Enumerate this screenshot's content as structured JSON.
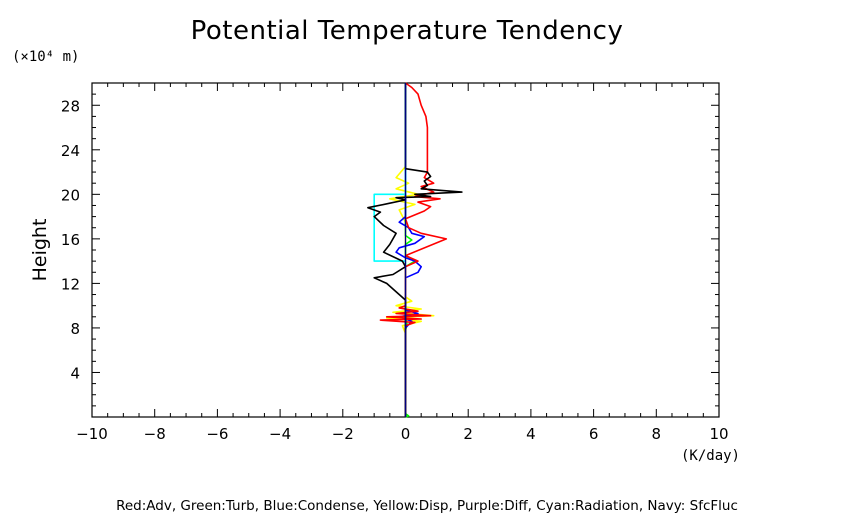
{
  "chart_data": {
    "type": "line",
    "title": "Potential Temperature Tendency",
    "xlabel": "(K/day)",
    "ylabel": "Height",
    "y_unit_label": "(×10⁴ m)",
    "xlim": [
      -10,
      10
    ],
    "ylim": [
      0,
      30
    ],
    "x_ticks": [
      -10,
      -8,
      -6,
      -4,
      -2,
      0,
      2,
      4,
      6,
      8,
      10
    ],
    "x_tick_labels": [
      "−10",
      "−8",
      "−6",
      "−4",
      "−2",
      "0",
      "2",
      "4",
      "6",
      "8",
      "10"
    ],
    "y_ticks": [
      4,
      8,
      12,
      16,
      20,
      24,
      28
    ],
    "y_tick_labels": [
      "4",
      "8",
      "12",
      "16",
      "20",
      "24",
      "28"
    ],
    "grid": false,
    "legend_caption": "Red:Adv, Green:Turb, Blue:Condense, Yellow:Disp, Purple:Diff, Cyan:Radiation, Navy: SfcFluc",
    "series": [
      {
        "color": "#ffff00",
        "points": [
          [
            0,
            0
          ],
          [
            0,
            7.5
          ],
          [
            -0.1,
            8.2
          ],
          [
            0.5,
            8.6
          ],
          [
            -0.6,
            8.9
          ],
          [
            0.9,
            9.1
          ],
          [
            -0.4,
            9.4
          ],
          [
            0.5,
            9.7
          ],
          [
            -0.3,
            10
          ],
          [
            0.2,
            10.4
          ],
          [
            0,
            10.8
          ],
          [
            0,
            15
          ],
          [
            0,
            17.5
          ],
          [
            -0.2,
            18.6
          ],
          [
            0.3,
            19.1
          ],
          [
            -0.5,
            19.6
          ],
          [
            0.4,
            20
          ],
          [
            -0.3,
            20.5
          ],
          [
            0.1,
            21
          ],
          [
            -0.3,
            21.5
          ],
          [
            0,
            22.5
          ],
          [
            0,
            30
          ]
        ]
      },
      {
        "color": "#00ff00",
        "points": [
          [
            0,
            0
          ],
          [
            0.1,
            0.1
          ],
          [
            0,
            0.3
          ],
          [
            0,
            7.8
          ],
          [
            0.05,
            8.3
          ],
          [
            0,
            9
          ],
          [
            0,
            13.5
          ],
          [
            0.3,
            14
          ],
          [
            0,
            14.5
          ],
          [
            0,
            15.5
          ],
          [
            0.2,
            15.9
          ],
          [
            0,
            16.3
          ],
          [
            0,
            30
          ]
        ]
      },
      {
        "color": "#0000ff",
        "points": [
          [
            0,
            0
          ],
          [
            0,
            8
          ],
          [
            0.2,
            8.6
          ],
          [
            -0.2,
            9
          ],
          [
            0.4,
            9.3
          ],
          [
            0,
            9.6
          ],
          [
            0,
            12.5
          ],
          [
            0.4,
            13
          ],
          [
            0.5,
            13.5
          ],
          [
            0.3,
            14
          ],
          [
            0,
            14.3
          ],
          [
            -0.3,
            14.8
          ],
          [
            -0.2,
            15.2
          ],
          [
            0.3,
            15.6
          ],
          [
            0.6,
            16.2
          ],
          [
            0.2,
            16.5
          ],
          [
            0.1,
            17
          ],
          [
            -0.2,
            17.5
          ],
          [
            0,
            18
          ],
          [
            0,
            30
          ]
        ]
      },
      {
        "color": "#00ffff",
        "points": [
          [
            0,
            0
          ],
          [
            0,
            14
          ],
          [
            -1,
            14
          ],
          [
            -1,
            14
          ],
          [
            -1,
            20
          ],
          [
            0,
            20
          ],
          [
            0,
            30
          ]
        ]
      },
      {
        "color": "#ff0000",
        "points": [
          [
            0,
            0
          ],
          [
            0,
            8.2
          ],
          [
            0.3,
            8.5
          ],
          [
            -0.8,
            8.7
          ],
          [
            0.5,
            8.8
          ],
          [
            -0.6,
            9
          ],
          [
            0.8,
            9.1
          ],
          [
            -0.3,
            9.3
          ],
          [
            0.4,
            9.5
          ],
          [
            -0.2,
            9.8
          ],
          [
            0,
            10
          ],
          [
            0,
            13.5
          ],
          [
            0.4,
            14
          ],
          [
            0,
            14.5
          ],
          [
            1.3,
            16
          ],
          [
            0.5,
            16.5
          ],
          [
            0.1,
            17
          ],
          [
            0,
            17.8
          ],
          [
            0.6,
            18.5
          ],
          [
            0.8,
            18.9
          ],
          [
            0.4,
            19.3
          ],
          [
            1.1,
            19.6
          ],
          [
            0.3,
            19.8
          ],
          [
            0.9,
            20.2
          ],
          [
            0.5,
            20.7
          ],
          [
            0.9,
            21
          ],
          [
            0.6,
            21.5
          ],
          [
            0.7,
            22
          ],
          [
            0.7,
            26
          ],
          [
            0.65,
            27
          ],
          [
            0.5,
            28
          ],
          [
            0.4,
            29
          ],
          [
            0.2,
            29.6
          ],
          [
            0,
            30
          ]
        ]
      },
      {
        "color": "#000000",
        "points": [
          [
            0,
            0
          ],
          [
            0,
            10.5
          ],
          [
            -0.4,
            11.5
          ],
          [
            -0.6,
            12
          ],
          [
            -1,
            12.5
          ],
          [
            -0.4,
            12.8
          ],
          [
            0,
            13.5
          ],
          [
            -0.1,
            14
          ],
          [
            -0.7,
            14.8
          ],
          [
            -0.5,
            15.5
          ],
          [
            -0.3,
            16.5
          ],
          [
            -0.7,
            17.2
          ],
          [
            -1,
            18
          ],
          [
            -0.8,
            18.4
          ],
          [
            -1.2,
            18.8
          ],
          [
            -0.5,
            19.2
          ],
          [
            0,
            19.5
          ],
          [
            -0.3,
            19.7
          ],
          [
            0.8,
            19.8
          ],
          [
            0.3,
            20
          ],
          [
            1.8,
            20.2
          ],
          [
            0.5,
            20.5
          ],
          [
            0.7,
            20.8
          ],
          [
            0.6,
            21.2
          ],
          [
            0.8,
            21.6
          ],
          [
            0.7,
            22
          ],
          [
            0,
            22.3
          ],
          [
            0,
            30
          ]
        ]
      },
      {
        "color": "#000080",
        "points": [
          [
            0,
            0
          ],
          [
            0,
            30
          ]
        ]
      }
    ]
  }
}
